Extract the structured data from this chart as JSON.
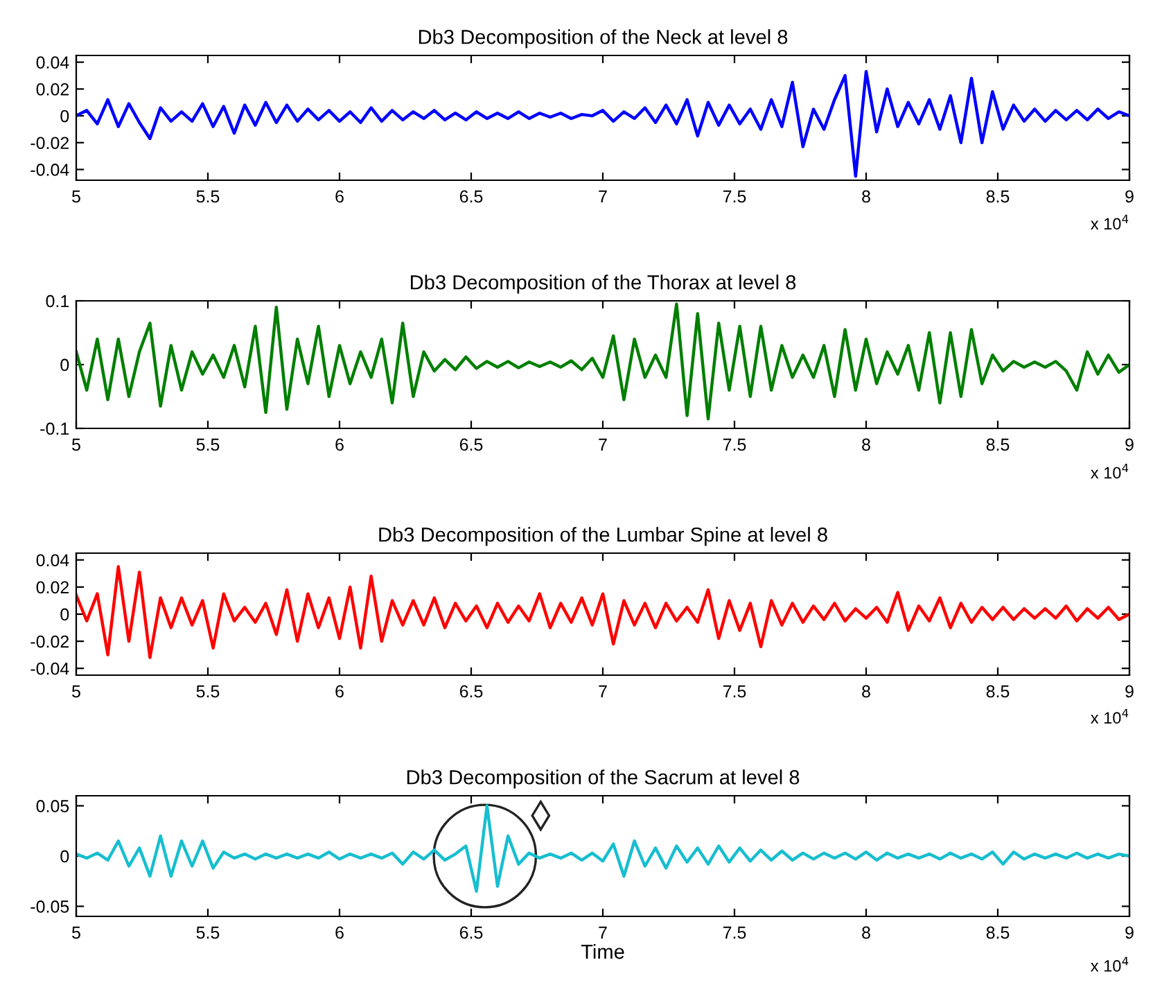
{
  "chart_data": [
    {
      "type": "line",
      "title": "Db3 Decomposition of the Neck at level 8",
      "grid": false,
      "legend": false,
      "x": [
        5,
        5.04,
        5.08,
        5.12,
        5.16,
        5.2,
        5.24,
        5.28,
        5.32,
        5.36,
        5.4,
        5.44,
        5.48,
        5.52,
        5.56,
        5.6,
        5.64,
        5.68,
        5.72,
        5.76,
        5.8,
        5.84,
        5.88,
        5.92,
        5.96,
        6,
        6.04,
        6.08,
        6.12,
        6.16,
        6.2,
        6.24,
        6.28,
        6.32,
        6.36,
        6.4,
        6.44,
        6.48,
        6.52,
        6.56,
        6.6,
        6.64,
        6.68,
        6.72,
        6.76,
        6.8,
        6.84,
        6.88,
        6.92,
        6.96,
        7,
        7.04,
        7.08,
        7.12,
        7.16,
        7.2,
        7.24,
        7.28,
        7.32,
        7.36,
        7.4,
        7.44,
        7.48,
        7.52,
        7.56,
        7.6,
        7.64,
        7.68,
        7.72,
        7.76,
        7.8,
        7.84,
        7.88,
        7.92,
        7.96,
        8,
        8.04,
        8.08,
        8.12,
        8.16,
        8.2,
        8.24,
        8.28,
        8.32,
        8.36,
        8.4,
        8.44,
        8.48,
        8.52,
        8.56,
        8.6,
        8.64,
        8.68,
        8.72,
        8.76,
        8.8,
        8.84,
        8.88,
        8.92,
        8.96,
        9
      ],
      "series": [
        {
          "color": "#0000ff",
          "values": [
            0,
            0.004,
            -0.006,
            0.012,
            -0.008,
            0.009,
            -0.005,
            -0.017,
            0.006,
            -0.004,
            0.003,
            -0.004,
            0.009,
            -0.008,
            0.007,
            -0.013,
            0.008,
            -0.007,
            0.01,
            -0.005,
            0.008,
            -0.004,
            0.005,
            -0.003,
            0.004,
            -0.004,
            0.003,
            -0.005,
            0.006,
            -0.004,
            0.004,
            -0.003,
            0.003,
            -0.002,
            0.004,
            -0.003,
            0.002,
            -0.003,
            0.003,
            -0.002,
            0.002,
            -0.002,
            0.003,
            -0.002,
            0.002,
            -0.001,
            0.002,
            -0.002,
            0.001,
            0,
            0.004,
            -0.004,
            0.003,
            -0.002,
            0.006,
            -0.005,
            0.008,
            -0.006,
            0.012,
            -0.015,
            0.01,
            -0.007,
            0.008,
            -0.006,
            0.005,
            -0.01,
            0.012,
            -0.008,
            0.025,
            -0.023,
            0.005,
            -0.01,
            0.012,
            0.03,
            -0.045,
            0.033,
            -0.012,
            0.02,
            -0.008,
            0.01,
            -0.006,
            0.012,
            -0.01,
            0.015,
            -0.02,
            0.028,
            -0.02,
            0.018,
            -0.01,
            0.008,
            -0.004,
            0.005,
            -0.004,
            0.004,
            -0.003,
            0.004,
            -0.003,
            0.005,
            -0.002,
            0.003,
            0
          ]
        }
      ],
      "xlim": [
        5,
        9
      ],
      "ylim": [
        -0.048,
        0.045
      ],
      "xticks": [
        5,
        5.5,
        6,
        6.5,
        7,
        7.5,
        8,
        8.5,
        9
      ],
      "yticks": [
        -0.04,
        -0.02,
        0,
        0.02,
        0.04
      ],
      "annotations": [
        "x 10$^{4}$"
      ]
    },
    {
      "type": "line",
      "title": "Db3 Decomposition of the Thorax at level 8",
      "grid": false,
      "legend": false,
      "x": [
        5,
        5.04,
        5.08,
        5.12,
        5.16,
        5.2,
        5.24,
        5.28,
        5.32,
        5.36,
        5.4,
        5.44,
        5.48,
        5.52,
        5.56,
        5.6,
        5.64,
        5.68,
        5.72,
        5.76,
        5.8,
        5.84,
        5.88,
        5.92,
        5.96,
        6,
        6.04,
        6.08,
        6.12,
        6.16,
        6.2,
        6.24,
        6.28,
        6.32,
        6.36,
        6.4,
        6.44,
        6.48,
        6.52,
        6.56,
        6.6,
        6.64,
        6.68,
        6.72,
        6.76,
        6.8,
        6.84,
        6.88,
        6.92,
        6.96,
        7,
        7.04,
        7.08,
        7.12,
        7.16,
        7.2,
        7.24,
        7.28,
        7.32,
        7.36,
        7.4,
        7.44,
        7.48,
        7.52,
        7.56,
        7.6,
        7.64,
        7.68,
        7.72,
        7.76,
        7.8,
        7.84,
        7.88,
        7.92,
        7.96,
        8,
        8.04,
        8.08,
        8.12,
        8.16,
        8.2,
        8.24,
        8.28,
        8.32,
        8.36,
        8.4,
        8.44,
        8.48,
        8.52,
        8.56,
        8.6,
        8.64,
        8.68,
        8.72,
        8.76,
        8.8,
        8.84,
        8.88,
        8.92,
        8.96,
        9
      ],
      "series": [
        {
          "color": "#007f00",
          "values": [
            0.02,
            -0.04,
            0.04,
            -0.055,
            0.04,
            -0.05,
            0.02,
            0.065,
            -0.065,
            0.03,
            -0.04,
            0.02,
            -0.015,
            0.015,
            -0.02,
            0.03,
            -0.035,
            0.06,
            -0.075,
            0.09,
            -0.07,
            0.04,
            -0.03,
            0.06,
            -0.05,
            0.03,
            -0.03,
            0.02,
            -0.02,
            0.04,
            -0.06,
            0.065,
            -0.05,
            0.02,
            -0.01,
            0.008,
            -0.008,
            0.012,
            -0.006,
            0.005,
            -0.004,
            0.005,
            -0.005,
            0.004,
            -0.003,
            0.004,
            -0.004,
            0.006,
            -0.008,
            0.01,
            -0.02,
            0.045,
            -0.055,
            0.04,
            -0.02,
            0.015,
            -0.02,
            0.095,
            -0.08,
            0.08,
            -0.085,
            0.065,
            -0.04,
            0.06,
            -0.05,
            0.06,
            -0.04,
            0.03,
            -0.02,
            0.015,
            -0.02,
            0.03,
            -0.05,
            0.055,
            -0.04,
            0.04,
            -0.03,
            0.02,
            -0.015,
            0.03,
            -0.04,
            0.05,
            -0.06,
            0.05,
            -0.05,
            0.055,
            -0.03,
            0.015,
            -0.01,
            0.005,
            -0.004,
            0.004,
            -0.004,
            0.005,
            -0.01,
            -0.04,
            0.02,
            -0.015,
            0.015,
            -0.012,
            0
          ]
        }
      ],
      "xlim": [
        5,
        9
      ],
      "ylim": [
        -0.1,
        0.1
      ],
      "xticks": [
        5,
        5.5,
        6,
        6.5,
        7,
        7.5,
        8,
        8.5,
        9
      ],
      "yticks": [
        -0.1,
        0,
        0.1
      ],
      "annotations": [
        "x 10$^{4}$"
      ]
    },
    {
      "type": "line",
      "title": "Db3 Decomposition of the Lumbar Spine at level 8",
      "grid": false,
      "legend": false,
      "x": [
        5,
        5.04,
        5.08,
        5.12,
        5.16,
        5.2,
        5.24,
        5.28,
        5.32,
        5.36,
        5.4,
        5.44,
        5.48,
        5.52,
        5.56,
        5.6,
        5.64,
        5.68,
        5.72,
        5.76,
        5.8,
        5.84,
        5.88,
        5.92,
        5.96,
        6,
        6.04,
        6.08,
        6.12,
        6.16,
        6.2,
        6.24,
        6.28,
        6.32,
        6.36,
        6.4,
        6.44,
        6.48,
        6.52,
        6.56,
        6.6,
        6.64,
        6.68,
        6.72,
        6.76,
        6.8,
        6.84,
        6.88,
        6.92,
        6.96,
        7,
        7.04,
        7.08,
        7.12,
        7.16,
        7.2,
        7.24,
        7.28,
        7.32,
        7.36,
        7.4,
        7.44,
        7.48,
        7.52,
        7.56,
        7.6,
        7.64,
        7.68,
        7.72,
        7.76,
        7.8,
        7.84,
        7.88,
        7.92,
        7.96,
        8,
        8.04,
        8.08,
        8.12,
        8.16,
        8.2,
        8.24,
        8.28,
        8.32,
        8.36,
        8.4,
        8.44,
        8.48,
        8.52,
        8.56,
        8.6,
        8.64,
        8.68,
        8.72,
        8.76,
        8.8,
        8.84,
        8.88,
        8.92,
        8.96,
        9
      ],
      "series": [
        {
          "color": "#ff0000",
          "values": [
            0.014,
            -0.005,
            0.015,
            -0.03,
            0.035,
            -0.02,
            0.031,
            -0.032,
            0.012,
            -0.01,
            0.012,
            -0.008,
            0.01,
            -0.025,
            0.015,
            -0.005,
            0.005,
            -0.006,
            0.008,
            -0.015,
            0.018,
            -0.02,
            0.015,
            -0.01,
            0.012,
            -0.018,
            0.02,
            -0.025,
            0.028,
            -0.02,
            0.01,
            -0.008,
            0.01,
            -0.008,
            0.012,
            -0.01,
            0.008,
            -0.005,
            0.006,
            -0.01,
            0.008,
            -0.006,
            0.006,
            -0.005,
            0.015,
            -0.01,
            0.008,
            -0.006,
            0.012,
            -0.008,
            0.015,
            -0.022,
            0.01,
            -0.008,
            0.008,
            -0.01,
            0.008,
            -0.005,
            0.005,
            -0.006,
            0.018,
            -0.018,
            0.01,
            -0.012,
            0.008,
            -0.024,
            0.01,
            -0.008,
            0.008,
            -0.006,
            0.006,
            -0.004,
            0.008,
            -0.005,
            0.004,
            -0.003,
            0.005,
            -0.006,
            0.016,
            -0.012,
            0.006,
            -0.005,
            0.012,
            -0.01,
            0.008,
            -0.006,
            0.005,
            -0.004,
            0.005,
            -0.004,
            0.004,
            -0.003,
            0.004,
            -0.003,
            0.006,
            -0.005,
            0.004,
            -0.003,
            0.005,
            -0.004,
            0
          ]
        }
      ],
      "xlim": [
        5,
        9
      ],
      "ylim": [
        -0.045,
        0.045
      ],
      "xticks": [
        5,
        5.5,
        6,
        6.5,
        7,
        7.5,
        8,
        8.5,
        9
      ],
      "yticks": [
        -0.04,
        -0.02,
        0,
        0.02,
        0.04
      ],
      "annotations": [
        "x 10$^{4}$"
      ]
    },
    {
      "type": "line",
      "title": "Db3 Decomposition of the Sacrum at level 8",
      "xlabel": "Time",
      "grid": false,
      "legend": false,
      "x": [
        5,
        5.04,
        5.08,
        5.12,
        5.16,
        5.2,
        5.24,
        5.28,
        5.32,
        5.36,
        5.4,
        5.44,
        5.48,
        5.52,
        5.56,
        5.6,
        5.64,
        5.68,
        5.72,
        5.76,
        5.8,
        5.84,
        5.88,
        5.92,
        5.96,
        6,
        6.04,
        6.08,
        6.12,
        6.16,
        6.2,
        6.24,
        6.28,
        6.32,
        6.36,
        6.4,
        6.44,
        6.48,
        6.52,
        6.56,
        6.6,
        6.64,
        6.68,
        6.72,
        6.76,
        6.8,
        6.84,
        6.88,
        6.92,
        6.96,
        7,
        7.04,
        7.08,
        7.12,
        7.16,
        7.2,
        7.24,
        7.28,
        7.32,
        7.36,
        7.4,
        7.44,
        7.48,
        7.52,
        7.56,
        7.6,
        7.64,
        7.68,
        7.72,
        7.76,
        7.8,
        7.84,
        7.88,
        7.92,
        7.96,
        8,
        8.04,
        8.08,
        8.12,
        8.16,
        8.2,
        8.24,
        8.28,
        8.32,
        8.36,
        8.4,
        8.44,
        8.48,
        8.52,
        8.56,
        8.6,
        8.64,
        8.68,
        8.72,
        8.76,
        8.8,
        8.84,
        8.88,
        8.92,
        8.96,
        9
      ],
      "series": [
        {
          "color": "#17becf",
          "values": [
            0.002,
            -0.002,
            0.003,
            -0.004,
            0.015,
            -0.01,
            0.008,
            -0.02,
            0.02,
            -0.02,
            0.015,
            -0.01,
            0.015,
            -0.012,
            0.004,
            -0.002,
            0.002,
            -0.003,
            0.002,
            -0.002,
            0.002,
            -0.002,
            0.002,
            -0.002,
            0.004,
            -0.003,
            0.002,
            -0.002,
            0.002,
            -0.002,
            0.003,
            -0.008,
            0.004,
            -0.003,
            0.006,
            -0.004,
            0.002,
            0.01,
            -0.035,
            0.05,
            -0.03,
            0.02,
            -0.008,
            0.003,
            -0.002,
            0.002,
            -0.002,
            0.003,
            -0.004,
            0.003,
            -0.005,
            0.012,
            -0.02,
            0.015,
            -0.01,
            0.008,
            -0.012,
            0.01,
            -0.006,
            0.008,
            -0.008,
            0.01,
            -0.006,
            0.008,
            -0.005,
            0.006,
            -0.004,
            0.005,
            -0.004,
            0.003,
            -0.003,
            0.003,
            -0.002,
            0.003,
            -0.003,
            0.004,
            -0.004,
            0.003,
            -0.002,
            0.002,
            -0.002,
            0.002,
            -0.003,
            0.003,
            -0.002,
            0.002,
            -0.003,
            0.004,
            -0.008,
            0.004,
            -0.003,
            0.002,
            -0.002,
            0.002,
            -0.002,
            0.003,
            -0.002,
            0.002,
            -0.002,
            0.002,
            0
          ]
        }
      ],
      "xlim": [
        5,
        9
      ],
      "ylim": [
        -0.06,
        0.06
      ],
      "xticks": [
        5,
        5.5,
        6,
        6.5,
        7,
        7.5,
        8,
        8.5,
        9
      ],
      "yticks": [
        -0.05,
        0,
        0.05
      ],
      "annotations": [
        "x 10$^{4}$"
      ]
    }
  ]
}
